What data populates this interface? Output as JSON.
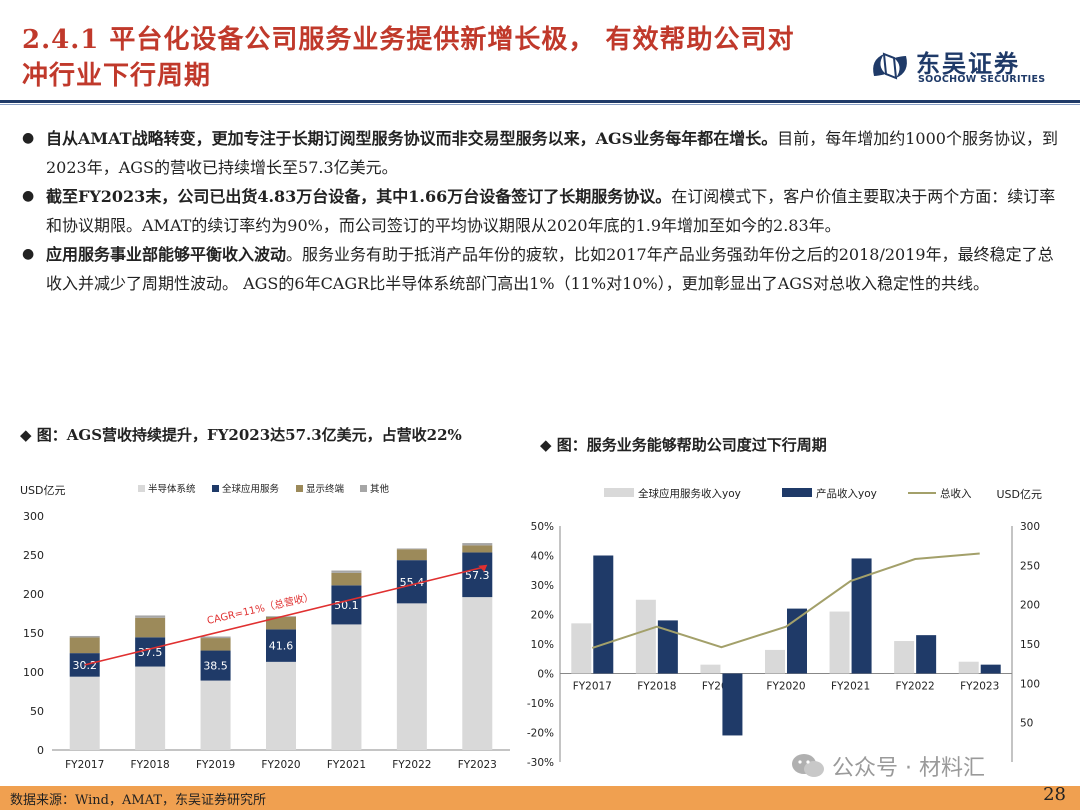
{
  "header": {
    "title_line1": "2.4.1 平台化设备公司服务业务提供新增长极，  有效帮助公司对",
    "title_line2": "冲行业下行周期",
    "logo_name": "东吴证券",
    "logo_en": "SOOCHOW SECURITIES"
  },
  "bullets": [
    {
      "bold": "自从AMAT战略转变，更加专注于长期订阅型服务协议而非交易型服务以来，AGS业务每年都在增长。",
      "rest": "目前，每年增加约1000个服务协议，到2023年，AGS的营收已持续增长至57.3亿美元。"
    },
    {
      "bold": "截至FY2023末，公司已出货4.83万台设备，其中1.66万台设备签订了长期服务协议。",
      "rest": "在订阅模式下，客户价值主要取决于两个方面：续订率和协议期限。AMAT的续订率约为90%，而公司签订的平均协议期限从2020年底的1.9年增加至如今的2.83年。"
    },
    {
      "bold": "应用服务事业部能够平衡收入波动",
      "rest": "。服务业务有助于抵消产品年份的疲软，比如2017年产品业务强劲年份之后的2018/2019年，最终稳定了总收入并减少了周期性波动。 AGS的6年CAGR比半导体系统部门高出1%（11%对10%），更加彰显出了AGS对总收入稳定性的共线。"
    }
  ],
  "chart_left_title": "◆ 图：AGS营收持续提升，FY2023达57.3亿美元，占营收22%",
  "chart_right_title": "◆ 图：服务业务能够帮助公司度过下行周期",
  "colors": {
    "light": "#d9d9d9",
    "navy": "#1f3a68",
    "olive": "#9c8a5a",
    "gray": "#a6a6a6",
    "line_red": "#e03030",
    "line_olive": "#a3a06a"
  },
  "chart_data": [
    {
      "type": "bar",
      "stacked": true,
      "ylabel": "USD亿元",
      "ylim": [
        0,
        300
      ],
      "yticks": [
        0,
        50,
        100,
        150,
        200,
        250,
        300
      ],
      "categories": [
        "FY2017",
        "FY2018",
        "FY2019",
        "FY2020",
        "FY2021",
        "FY2022",
        "FY2023"
      ],
      "series": [
        {
          "name": "半导体系统",
          "values": [
            94,
            107,
            89,
            113,
            161,
            188,
            196
          ]
        },
        {
          "name": "全球应用服务",
          "values": [
            30.2,
            37.5,
            38.5,
            41.6,
            50.1,
            55.4,
            57.3
          ]
        },
        {
          "name": "显示终端",
          "values": [
            20,
            25,
            16,
            16,
            16,
            14,
            9
          ]
        },
        {
          "name": "其他",
          "values": [
            2,
            3,
            2,
            1,
            3,
            1,
            3
          ]
        }
      ],
      "data_labels": [
        "30.2",
        "37.5",
        "38.5",
        "41.6",
        "50.1",
        "55.4",
        "57.3"
      ],
      "annotation": "CAGR=11%（总营收）",
      "legend": "top"
    },
    {
      "type": "bar",
      "ylabel_right": "USD亿元",
      "ylim_left": [
        -30,
        50
      ],
      "yticks_left": [
        "-30%",
        "-20%",
        "-10%",
        "0%",
        "10%",
        "20%",
        "30%",
        "40%",
        "50%"
      ],
      "ylim_right": [
        0,
        300
      ],
      "yticks_right": [
        50,
        100,
        150,
        200,
        250,
        300
      ],
      "categories": [
        "FY2017",
        "FY2018",
        "FY2019",
        "FY2020",
        "FY2021",
        "FY2022",
        "FY2023"
      ],
      "series": [
        {
          "name": "全球应用服务收入yoy",
          "values": [
            17,
            25,
            3,
            8,
            21,
            11,
            4
          ]
        },
        {
          "name": "产品收入yoy",
          "values": [
            40,
            18,
            -21,
            22,
            39,
            13,
            3
          ]
        },
        {
          "name": "总收入",
          "type": "line",
          "axis": "right",
          "values": [
            145,
            172,
            146,
            172,
            230,
            258,
            265
          ]
        }
      ],
      "legend": "top"
    }
  ],
  "footer": {
    "source": "数据来源：Wind，AMAT，东吴证券研究所",
    "page": "28",
    "watermark": "公众号 · 材料汇"
  }
}
